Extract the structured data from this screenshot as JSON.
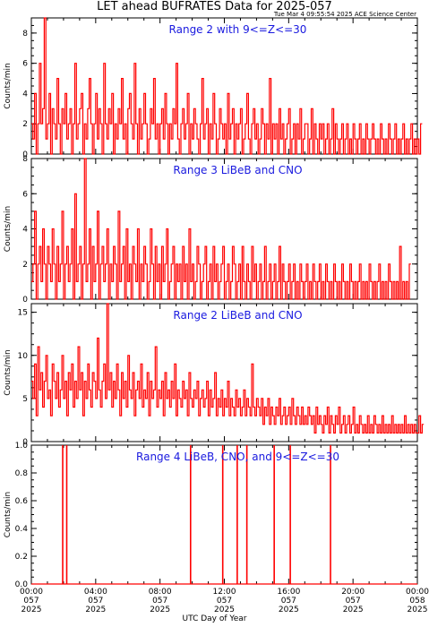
{
  "header": {
    "title": "LET ahead BUFRATES Data for 2025-057",
    "timestamp": "Tue Mar  4 09:55:54 2025 ACE Science Center"
  },
  "colors": {
    "trace": "#ff0000",
    "panel_title": "#1a1adf",
    "axis": "#000000"
  },
  "x_axis": {
    "label": "UTC Day of Year",
    "ticks": [
      [
        "00:00",
        "057",
        "2025"
      ],
      [
        "04:00",
        "057",
        "2025"
      ],
      [
        "08:00",
        "057",
        "2025"
      ],
      [
        "12:00",
        "057",
        "2025"
      ],
      [
        "16:00",
        "057",
        "2025"
      ],
      [
        "20:00",
        "057",
        "2025"
      ],
      [
        "00:00",
        "058",
        "2025"
      ]
    ]
  },
  "chart_data": [
    {
      "type": "line",
      "title": "Range 2 with 9<=Z<=30",
      "ylabel": "Counts/min",
      "ylim": [
        0,
        9
      ],
      "yticks": [
        0,
        2,
        4,
        6,
        8
      ],
      "xlim_hours": [
        0,
        24
      ],
      "series": [
        {
          "step_minutes": 6,
          "values": [
            2,
            1,
            4,
            0,
            2,
            6,
            2,
            3,
            9,
            1,
            2,
            4,
            0,
            3,
            2,
            1,
            5,
            2,
            0,
            3,
            2,
            4,
            1,
            2,
            3,
            0,
            2,
            6,
            1,
            2,
            3,
            4,
            0,
            2,
            1,
            3,
            5,
            2,
            0,
            2,
            4,
            1,
            3,
            2,
            0,
            6,
            2,
            1,
            3,
            2,
            4,
            0,
            2,
            1,
            3,
            2,
            5,
            1,
            2,
            0,
            3,
            4,
            2,
            1,
            6,
            2,
            0,
            3,
            1,
            2,
            4,
            2,
            0,
            1,
            3,
            2,
            5,
            1,
            2,
            0,
            2,
            3,
            1,
            4,
            2,
            0,
            2,
            1,
            3,
            2,
            6,
            1,
            0,
            2,
            3,
            1,
            2,
            4,
            0,
            2,
            1,
            3,
            2,
            1,
            0,
            2,
            5,
            1,
            2,
            3,
            0,
            2,
            1,
            4,
            2,
            0,
            1,
            3,
            2,
            1,
            2,
            0,
            4,
            1,
            2,
            3,
            0,
            2,
            1,
            2,
            3,
            0,
            1,
            2,
            4,
            1,
            0,
            2,
            3,
            1,
            2,
            0,
            1,
            3,
            2,
            0,
            2,
            1,
            5,
            0,
            2,
            1,
            2,
            0,
            3,
            1,
            2,
            0,
            1,
            2,
            3,
            0,
            1,
            2,
            0,
            2,
            1,
            3,
            0,
            1,
            2,
            2,
            0,
            1,
            3,
            0,
            2,
            1,
            0,
            2,
            1,
            2,
            0,
            1,
            2,
            0,
            1,
            3,
            0,
            2,
            1,
            0,
            1,
            2,
            0,
            1,
            2,
            0,
            1,
            0,
            2,
            1,
            0,
            1,
            2,
            0,
            1,
            0,
            2,
            1,
            0,
            1,
            2,
            1,
            0,
            1,
            0,
            2,
            1,
            0,
            1,
            0,
            2,
            1,
            0,
            1,
            2,
            0,
            1,
            0,
            1,
            2,
            0,
            1,
            0,
            1,
            2,
            0,
            1,
            0,
            1,
            0,
            2
          ]
        }
      ]
    },
    {
      "type": "line",
      "title": "Range 3 LiBeB and CNO",
      "ylabel": "Counts/min",
      "ylim": [
        0,
        8
      ],
      "yticks": [
        0,
        2,
        4,
        6,
        8
      ],
      "xlim_hours": [
        0,
        24
      ],
      "series": [
        {
          "step_minutes": 6,
          "values": [
            1,
            2,
            5,
            0,
            2,
            3,
            1,
            4,
            2,
            0,
            3,
            2,
            1,
            4,
            2,
            0,
            3,
            1,
            2,
            5,
            0,
            2,
            3,
            1,
            2,
            4,
            0,
            6,
            1,
            2,
            3,
            0,
            2,
            8,
            1,
            2,
            4,
            0,
            3,
            1,
            2,
            5,
            0,
            2,
            3,
            1,
            2,
            4,
            0,
            2,
            1,
            3,
            2,
            0,
            5,
            1,
            2,
            3,
            0,
            4,
            1,
            2,
            0,
            3,
            2,
            1,
            4,
            0,
            2,
            1,
            3,
            2,
            0,
            1,
            4,
            2,
            0,
            3,
            1,
            2,
            0,
            3,
            1,
            2,
            4,
            0,
            1,
            2,
            3,
            0,
            2,
            1,
            2,
            0,
            3,
            1,
            2,
            0,
            4,
            1,
            2,
            0,
            1,
            3,
            2,
            0,
            1,
            2,
            3,
            0,
            1,
            2,
            0,
            3,
            1,
            2,
            0,
            1,
            2,
            3,
            0,
            1,
            2,
            0,
            1,
            3,
            2,
            0,
            1,
            2,
            0,
            3,
            1,
            0,
            2,
            1,
            0,
            3,
            1,
            2,
            0,
            1,
            2,
            0,
            1,
            3,
            0,
            1,
            2,
            0,
            1,
            2,
            0,
            1,
            3,
            0,
            2,
            1,
            0,
            1,
            2,
            0,
            1,
            2,
            0,
            1,
            0,
            2,
            1,
            0,
            1,
            2,
            0,
            1,
            0,
            2,
            1,
            0,
            1,
            2,
            0,
            1,
            0,
            2,
            1,
            0,
            1,
            0,
            2,
            1,
            0,
            1,
            0,
            2,
            1,
            0,
            1,
            0,
            2,
            1,
            0,
            1,
            0,
            1,
            2,
            0,
            1,
            0,
            1,
            0,
            2,
            1,
            0,
            1,
            0,
            1,
            2,
            0,
            1,
            0,
            1,
            0,
            2,
            1,
            0,
            1,
            0,
            1,
            0,
            3,
            0,
            1,
            0,
            1,
            0,
            2
          ]
        }
      ]
    },
    {
      "type": "line",
      "title": "Range 2 LiBeB and CNO",
      "ylabel": "Counts/min",
      "ylim": [
        0,
        16
      ],
      "yticks": [
        0,
        5,
        10,
        15
      ],
      "xlim_hours": [
        0,
        24
      ],
      "series": [
        {
          "step_minutes": 6,
          "values": [
            7,
            5,
            9,
            3,
            11,
            6,
            8,
            4,
            7,
            10,
            5,
            6,
            3,
            9,
            7,
            5,
            8,
            4,
            6,
            10,
            5,
            7,
            3,
            8,
            6,
            9,
            4,
            7,
            5,
            11,
            6,
            8,
            3,
            7,
            5,
            9,
            6,
            4,
            8,
            7,
            5,
            12,
            6,
            4,
            7,
            9,
            5,
            16,
            6,
            8,
            4,
            7,
            5,
            9,
            6,
            3,
            8,
            5,
            7,
            4,
            10,
            6,
            5,
            8,
            3,
            6,
            7,
            5,
            9,
            4,
            6,
            5,
            8,
            3,
            7,
            5,
            6,
            11,
            4,
            6,
            5,
            7,
            3,
            8,
            5,
            6,
            4,
            7,
            5,
            9,
            3,
            6,
            5,
            4,
            7,
            5,
            6,
            3,
            8,
            5,
            4,
            6,
            5,
            7,
            3,
            5,
            6,
            4,
            5,
            7,
            3,
            6,
            4,
            5,
            8,
            3,
            5,
            4,
            6,
            3,
            5,
            4,
            7,
            3,
            5,
            4,
            3,
            6,
            4,
            5,
            3,
            4,
            6,
            3,
            5,
            4,
            3,
            9,
            4,
            3,
            5,
            4,
            3,
            5,
            2,
            4,
            3,
            5,
            2,
            4,
            3,
            2,
            4,
            3,
            5,
            2,
            3,
            4,
            2,
            3,
            4,
            2,
            5,
            3,
            2,
            4,
            3,
            2,
            4,
            2,
            3,
            2,
            4,
            3,
            2,
            3,
            1,
            4,
            2,
            3,
            2,
            1,
            3,
            2,
            4,
            1,
            3,
            2,
            1,
            3,
            2,
            4,
            1,
            2,
            3,
            1,
            2,
            3,
            1,
            2,
            4,
            1,
            2,
            1,
            3,
            2,
            1,
            2,
            1,
            3,
            1,
            2,
            1,
            3,
            2,
            1,
            2,
            1,
            3,
            1,
            2,
            1,
            2,
            1,
            3,
            1,
            2,
            1,
            2,
            1,
            2,
            1,
            3,
            1,
            2,
            1,
            2,
            1,
            2,
            1,
            1,
            3,
            1,
            2
          ]
        }
      ]
    },
    {
      "type": "line",
      "title": "Range 4 LiBeB, CNO, and 9<=Z<=30",
      "ylabel": "Counts/min",
      "ylim": [
        0,
        1
      ],
      "yticks": [
        0.0,
        0.2,
        0.4,
        0.6,
        0.8,
        1.0
      ],
      "xlim_hours": [
        0,
        24
      ],
      "spikes_hours": [
        1.95,
        2.2,
        9.9,
        11.9,
        12.8,
        13.4,
        15.1,
        16.1,
        18.6
      ],
      "spike_value": 1
    }
  ]
}
